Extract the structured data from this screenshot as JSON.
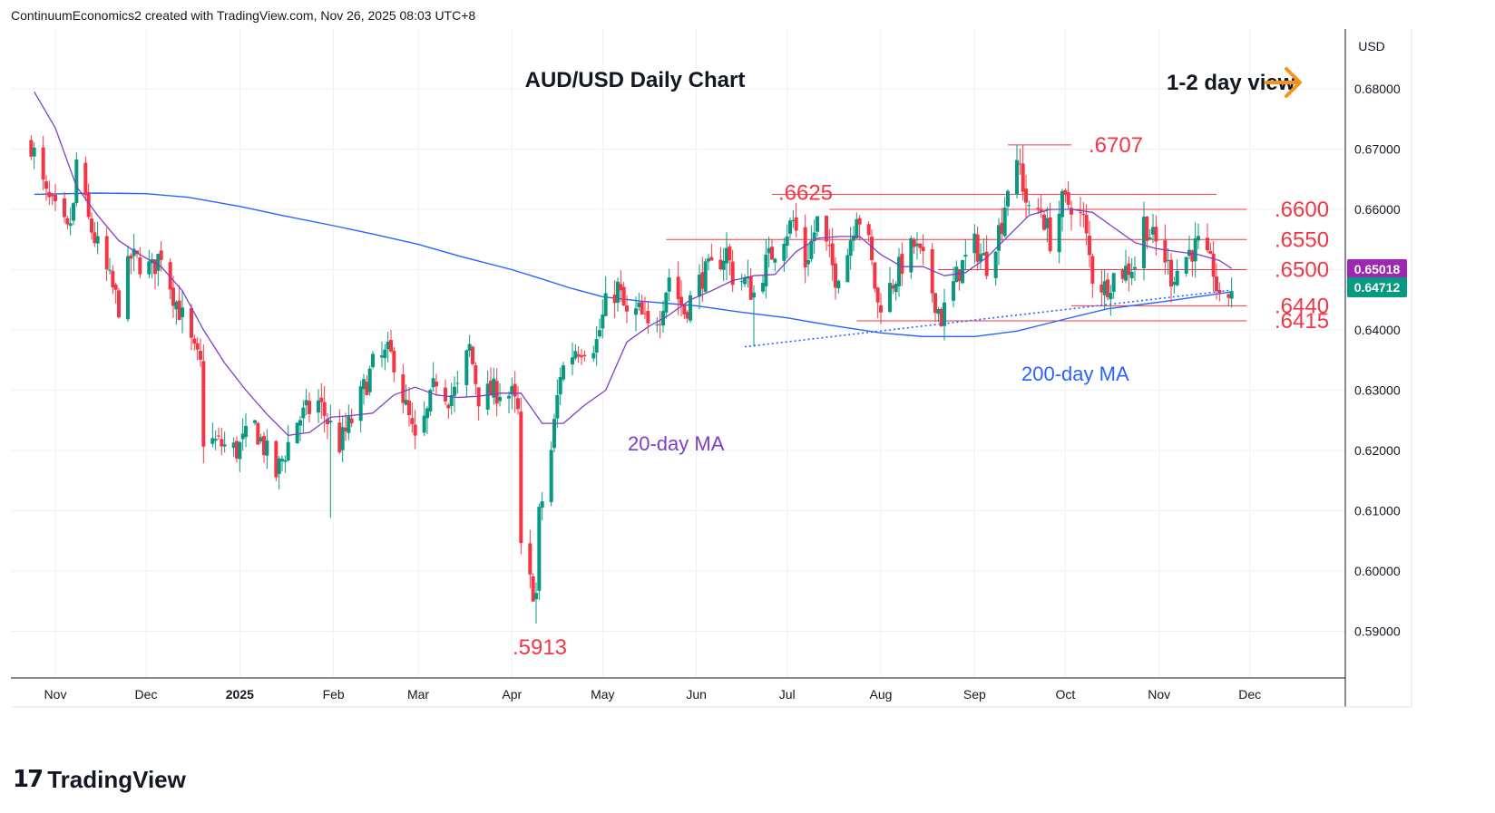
{
  "header": {
    "attribution": "ContinuumEconomics2 created with TradingView.com, Nov 26, 2025 08:03 UTC+8"
  },
  "footer": {
    "brand": "TradingView",
    "brand_mark": "17"
  },
  "colors": {
    "up": "#089981",
    "down": "#f23645",
    "ma20": "#7e3fc6",
    "ma200": "#2962ff",
    "level": "#f23645",
    "trend": "#2962ff",
    "arrow": "#f7931a",
    "price_tag": "#089981",
    "ma_tag": "#9c27b0"
  },
  "chart_data": {
    "type": "candlestick",
    "title": "AUD/USD Daily Chart",
    "view_label": "1-2 day view",
    "currency": "USD",
    "ylim": [
      0.585,
      0.6955
    ],
    "y_ticks": [
      "0.68000",
      "0.67000",
      "0.66000",
      "0.65000",
      "0.64000",
      "0.63000",
      "0.62000",
      "0.61000",
      "0.60000",
      "0.59000"
    ],
    "x_ticks": [
      "Nov",
      "Dec",
      "2025",
      "Feb",
      "Mar",
      "Apr",
      "May",
      "Jun",
      "Jul",
      "Aug",
      "Sep",
      "Oct",
      "Nov",
      "Dec"
    ],
    "last_price": "0.64712",
    "ma20_last": "0.65018",
    "levels": [
      {
        "label": ".6707",
        "value": 0.6707,
        "from": "2025-09-12",
        "to": "2025-10-03"
      },
      {
        "label": ".6625",
        "value": 0.6625,
        "from": "2025-06-26",
        "to": "2025-11-20"
      },
      {
        "label": ".6600",
        "value": 0.66,
        "from": "2025-07-15",
        "to": "2025-11-30"
      },
      {
        "label": ".6550",
        "value": 0.655,
        "from": "2025-05-22",
        "to": "2025-11-30"
      },
      {
        "label": ".6500",
        "value": 0.65,
        "from": "2025-08-20",
        "to": "2025-11-30"
      },
      {
        "label": ".6440",
        "value": 0.644,
        "from": "2025-10-03",
        "to": "2025-11-30"
      },
      {
        "label": ".6415",
        "value": 0.6415,
        "from": "2025-07-24",
        "to": "2025-11-30"
      },
      {
        "label": ".5913",
        "value": 0.5913,
        "from": "2025-04-09",
        "to": "2025-04-09"
      }
    ],
    "annotations": {
      "ma20_label": "20-day MA",
      "ma200_label": "200-day MA"
    },
    "trendline": {
      "from": {
        "date": "2025-06-17",
        "value": 0.6372
      },
      "to": {
        "date": "2025-11-25",
        "value": 0.6466
      }
    },
    "ma20": [
      {
        "date": "2024-10-25",
        "value": 0.6795
      },
      {
        "date": "2024-11-01",
        "value": 0.6735
      },
      {
        "date": "2024-11-08",
        "value": 0.6638
      },
      {
        "date": "2024-11-15",
        "value": 0.659
      },
      {
        "date": "2024-11-22",
        "value": 0.6548
      },
      {
        "date": "2024-11-29",
        "value": 0.6525
      },
      {
        "date": "2024-12-06",
        "value": 0.6505
      },
      {
        "date": "2024-12-13",
        "value": 0.6465
      },
      {
        "date": "2024-12-20",
        "value": 0.64
      },
      {
        "date": "2024-12-27",
        "value": 0.6345
      },
      {
        "date": "2025-01-03",
        "value": 0.63
      },
      {
        "date": "2025-01-10",
        "value": 0.626
      },
      {
        "date": "2025-01-17",
        "value": 0.6225
      },
      {
        "date": "2025-01-24",
        "value": 0.623
      },
      {
        "date": "2025-01-31",
        "value": 0.6255
      },
      {
        "date": "2025-02-07",
        "value": 0.6258
      },
      {
        "date": "2025-02-14",
        "value": 0.6262
      },
      {
        "date": "2025-02-21",
        "value": 0.6292
      },
      {
        "date": "2025-02-28",
        "value": 0.6305
      },
      {
        "date": "2025-03-07",
        "value": 0.6292
      },
      {
        "date": "2025-03-14",
        "value": 0.6288
      },
      {
        "date": "2025-03-21",
        "value": 0.629
      },
      {
        "date": "2025-03-28",
        "value": 0.6295
      },
      {
        "date": "2025-04-04",
        "value": 0.6295
      },
      {
        "date": "2025-04-11",
        "value": 0.6245
      },
      {
        "date": "2025-04-18",
        "value": 0.6245
      },
      {
        "date": "2025-04-25",
        "value": 0.6275
      },
      {
        "date": "2025-05-02",
        "value": 0.63
      },
      {
        "date": "2025-05-09",
        "value": 0.638
      },
      {
        "date": "2025-05-16",
        "value": 0.6405
      },
      {
        "date": "2025-05-23",
        "value": 0.6425
      },
      {
        "date": "2025-05-30",
        "value": 0.645
      },
      {
        "date": "2025-06-06",
        "value": 0.6465
      },
      {
        "date": "2025-06-13",
        "value": 0.6482
      },
      {
        "date": "2025-06-20",
        "value": 0.649
      },
      {
        "date": "2025-06-27",
        "value": 0.6492
      },
      {
        "date": "2025-07-04",
        "value": 0.653
      },
      {
        "date": "2025-07-11",
        "value": 0.6552
      },
      {
        "date": "2025-07-18",
        "value": 0.6555
      },
      {
        "date": "2025-07-25",
        "value": 0.6555
      },
      {
        "date": "2025-08-01",
        "value": 0.6525
      },
      {
        "date": "2025-08-08",
        "value": 0.6505
      },
      {
        "date": "2025-08-15",
        "value": 0.6505
      },
      {
        "date": "2025-08-22",
        "value": 0.649
      },
      {
        "date": "2025-08-29",
        "value": 0.6495
      },
      {
        "date": "2025-09-05",
        "value": 0.652
      },
      {
        "date": "2025-09-12",
        "value": 0.6555
      },
      {
        "date": "2025-09-19",
        "value": 0.659
      },
      {
        "date": "2025-09-26",
        "value": 0.66
      },
      {
        "date": "2025-10-03",
        "value": 0.66
      },
      {
        "date": "2025-10-10",
        "value": 0.6595
      },
      {
        "date": "2025-10-17",
        "value": 0.657
      },
      {
        "date": "2025-10-24",
        "value": 0.6545
      },
      {
        "date": "2025-10-31",
        "value": 0.6535
      },
      {
        "date": "2025-11-07",
        "value": 0.653
      },
      {
        "date": "2025-11-14",
        "value": 0.6525
      },
      {
        "date": "2025-11-21",
        "value": 0.6515
      },
      {
        "date": "2025-11-25",
        "value": 0.6502
      }
    ],
    "ma200": [
      {
        "date": "2024-10-25",
        "value": 0.6625
      },
      {
        "date": "2024-11-15",
        "value": 0.6627
      },
      {
        "date": "2024-12-01",
        "value": 0.6626
      },
      {
        "date": "2024-12-15",
        "value": 0.662
      },
      {
        "date": "2025-01-01",
        "value": 0.6605
      },
      {
        "date": "2025-01-15",
        "value": 0.659
      },
      {
        "date": "2025-02-01",
        "value": 0.6573
      },
      {
        "date": "2025-02-15",
        "value": 0.6558
      },
      {
        "date": "2025-03-01",
        "value": 0.6542
      },
      {
        "date": "2025-03-15",
        "value": 0.6522
      },
      {
        "date": "2025-04-01",
        "value": 0.65
      },
      {
        "date": "2025-04-10",
        "value": 0.6486
      },
      {
        "date": "2025-04-20",
        "value": 0.647
      },
      {
        "date": "2025-05-01",
        "value": 0.6455
      },
      {
        "date": "2025-05-15",
        "value": 0.6447
      },
      {
        "date": "2025-06-01",
        "value": 0.644
      },
      {
        "date": "2025-06-15",
        "value": 0.643
      },
      {
        "date": "2025-07-01",
        "value": 0.642
      },
      {
        "date": "2025-07-15",
        "value": 0.6408
      },
      {
        "date": "2025-08-01",
        "value": 0.6395
      },
      {
        "date": "2025-08-15",
        "value": 0.6389
      },
      {
        "date": "2025-09-01",
        "value": 0.6389
      },
      {
        "date": "2025-09-15",
        "value": 0.6398
      },
      {
        "date": "2025-10-01",
        "value": 0.6418
      },
      {
        "date": "2025-10-15",
        "value": 0.6435
      },
      {
        "date": "2025-11-01",
        "value": 0.6446
      },
      {
        "date": "2025-11-15",
        "value": 0.6456
      },
      {
        "date": "2025-11-25",
        "value": 0.6463
      }
    ],
    "price_path": [
      {
        "date": "2024-10-24",
        "value": 0.671
      },
      {
        "date": "2024-10-29",
        "value": 0.662
      },
      {
        "date": "2024-11-05",
        "value": 0.656
      },
      {
        "date": "2024-11-07",
        "value": 0.66
      },
      {
        "date": "2024-11-08",
        "value": 0.668
      },
      {
        "date": "2024-11-12",
        "value": 0.658
      },
      {
        "date": "2024-11-19",
        "value": 0.648
      },
      {
        "date": "2024-11-22",
        "value": 0.644
      },
      {
        "date": "2024-11-26",
        "value": 0.652
      },
      {
        "date": "2024-12-03",
        "value": 0.65
      },
      {
        "date": "2024-12-06",
        "value": 0.653
      },
      {
        "date": "2024-12-10",
        "value": 0.646
      },
      {
        "date": "2024-12-13",
        "value": 0.642
      },
      {
        "date": "2024-12-17",
        "value": 0.636
      },
      {
        "date": "2024-12-19",
        "value": 0.634
      },
      {
        "date": "2024-12-20",
        "value": 0.622
      },
      {
        "date": "2024-12-31",
        "value": 0.62
      },
      {
        "date": "2025-01-06",
        "value": 0.624
      },
      {
        "date": "2025-01-13",
        "value": 0.616
      },
      {
        "date": "2025-01-20",
        "value": 0.625
      },
      {
        "date": "2025-01-27",
        "value": 0.628
      },
      {
        "date": "2025-02-03",
        "value": 0.621
      },
      {
        "date": "2025-02-07",
        "value": 0.625
      },
      {
        "date": "2025-02-14",
        "value": 0.634
      },
      {
        "date": "2025-02-19",
        "value": 0.636
      },
      {
        "date": "2025-02-21",
        "value": 0.635
      },
      {
        "date": "2025-02-28",
        "value": 0.621
      },
      {
        "date": "2025-03-04",
        "value": 0.626
      },
      {
        "date": "2025-03-07",
        "value": 0.632
      },
      {
        "date": "2025-03-11",
        "value": 0.629
      },
      {
        "date": "2025-03-14",
        "value": 0.63
      },
      {
        "date": "2025-03-18",
        "value": 0.637
      },
      {
        "date": "2025-03-21",
        "value": 0.629
      },
      {
        "date": "2025-03-28",
        "value": 0.63
      },
      {
        "date": "2025-04-01",
        "value": 0.629
      },
      {
        "date": "2025-04-03",
        "value": 0.626
      },
      {
        "date": "2025-04-04",
        "value": 0.603
      },
      {
        "date": "2025-04-07",
        "value": 0.598
      },
      {
        "date": "2025-04-09",
        "value": 0.596
      },
      {
        "date": "2025-04-10",
        "value": 0.609
      },
      {
        "date": "2025-04-14",
        "value": 0.62
      },
      {
        "date": "2025-04-17",
        "value": 0.633
      },
      {
        "date": "2025-04-22",
        "value": 0.637
      },
      {
        "date": "2025-04-29",
        "value": 0.638
      },
      {
        "date": "2025-05-02",
        "value": 0.644
      },
      {
        "date": "2025-05-06",
        "value": 0.647
      },
      {
        "date": "2025-05-09",
        "value": 0.642
      },
      {
        "date": "2025-05-13",
        "value": 0.643
      },
      {
        "date": "2025-05-16",
        "value": 0.64
      },
      {
        "date": "2025-05-20",
        "value": 0.643
      },
      {
        "date": "2025-05-23",
        "value": 0.649
      },
      {
        "date": "2025-05-28",
        "value": 0.643
      },
      {
        "date": "2025-06-03",
        "value": 0.649
      },
      {
        "date": "2025-06-06",
        "value": 0.65
      },
      {
        "date": "2025-06-11",
        "value": 0.653
      },
      {
        "date": "2025-06-13",
        "value": 0.649
      },
      {
        "date": "2025-06-17",
        "value": 0.648
      },
      {
        "date": "2025-06-20",
        "value": 0.646
      },
      {
        "date": "2025-06-24",
        "value": 0.651
      },
      {
        "date": "2025-06-30",
        "value": 0.656
      },
      {
        "date": "2025-07-03",
        "value": 0.658
      },
      {
        "date": "2025-07-07",
        "value": 0.651
      },
      {
        "date": "2025-07-11",
        "value": 0.658
      },
      {
        "date": "2025-07-17",
        "value": 0.649
      },
      {
        "date": "2025-07-21",
        "value": 0.653
      },
      {
        "date": "2025-07-24",
        "value": 0.66
      },
      {
        "date": "2025-07-28",
        "value": 0.654
      },
      {
        "date": "2025-07-31",
        "value": 0.644
      },
      {
        "date": "2025-08-04",
        "value": 0.647
      },
      {
        "date": "2025-08-08",
        "value": 0.651
      },
      {
        "date": "2025-08-12",
        "value": 0.654
      },
      {
        "date": "2025-08-15",
        "value": 0.651
      },
      {
        "date": "2025-08-19",
        "value": 0.645
      },
      {
        "date": "2025-08-21",
        "value": 0.642
      },
      {
        "date": "2025-08-27",
        "value": 0.65
      },
      {
        "date": "2025-09-01",
        "value": 0.654
      },
      {
        "date": "2025-09-05",
        "value": 0.651
      },
      {
        "date": "2025-09-10",
        "value": 0.658
      },
      {
        "date": "2025-09-12",
        "value": 0.664
      },
      {
        "date": "2025-09-16",
        "value": 0.667
      },
      {
        "date": "2025-09-17",
        "value": 0.664
      },
      {
        "date": "2025-09-19",
        "value": 0.659
      },
      {
        "date": "2025-09-23",
        "value": 0.66
      },
      {
        "date": "2025-09-26",
        "value": 0.655
      },
      {
        "date": "2025-09-30",
        "value": 0.661
      },
      {
        "date": "2025-10-03",
        "value": 0.661
      },
      {
        "date": "2025-10-07",
        "value": 0.658
      },
      {
        "date": "2025-10-10",
        "value": 0.649
      },
      {
        "date": "2025-10-14",
        "value": 0.647
      },
      {
        "date": "2025-10-17",
        "value": 0.649
      },
      {
        "date": "2025-10-21",
        "value": 0.65
      },
      {
        "date": "2025-10-24",
        "value": 0.651
      },
      {
        "date": "2025-10-27",
        "value": 0.658
      },
      {
        "date": "2025-10-30",
        "value": 0.655
      },
      {
        "date": "2025-11-03",
        "value": 0.652
      },
      {
        "date": "2025-11-05",
        "value": 0.649
      },
      {
        "date": "2025-11-07",
        "value": 0.65
      },
      {
        "date": "2025-11-11",
        "value": 0.653
      },
      {
        "date": "2025-11-14",
        "value": 0.654
      },
      {
        "date": "2025-11-17",
        "value": 0.651
      },
      {
        "date": "2025-11-19",
        "value": 0.65
      },
      {
        "date": "2025-11-21",
        "value": 0.644
      },
      {
        "date": "2025-11-24",
        "value": 0.646
      },
      {
        "date": "2025-11-25",
        "value": 0.6471
      }
    ]
  }
}
